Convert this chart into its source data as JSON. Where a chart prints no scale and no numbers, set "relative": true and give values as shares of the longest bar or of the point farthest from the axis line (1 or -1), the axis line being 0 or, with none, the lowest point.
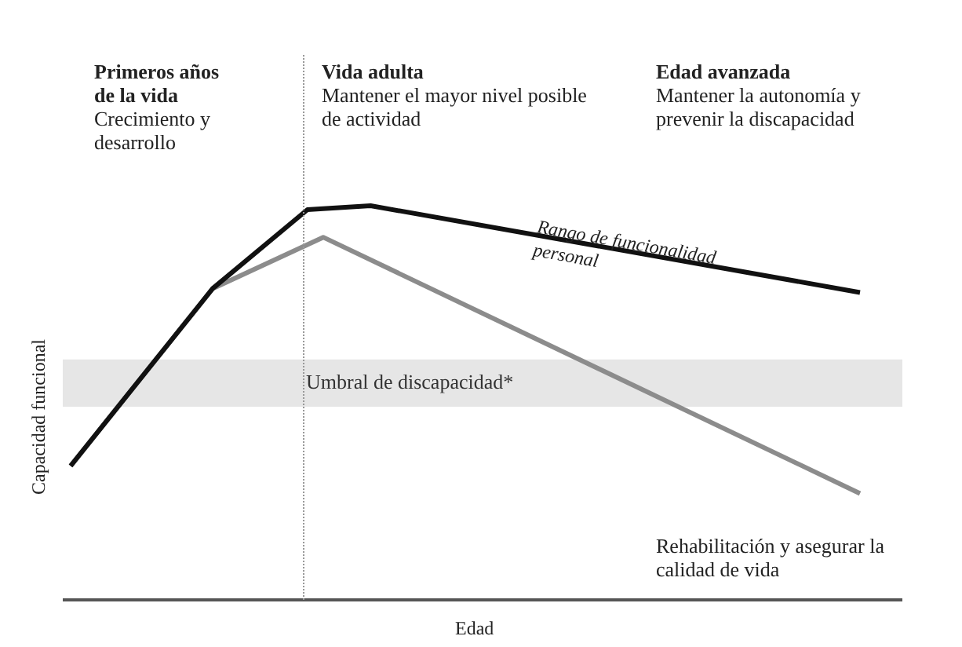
{
  "chart_data": {
    "type": "line",
    "relative": true,
    "xlabel": "Edad",
    "ylabel": "Capacidad funcional",
    "tick_labels": false,
    "grid": false,
    "legend": false,
    "marker": "none",
    "line_style": "solid",
    "categories": [
      null,
      null,
      null,
      null,
      null,
      null,
      null,
      null,
      null,
      null,
      null,
      null,
      null,
      null,
      null,
      null,
      null,
      null,
      null,
      null,
      null,
      null,
      null,
      null,
      null,
      null,
      null,
      null,
      null,
      null,
      null,
      null,
      null,
      null,
      null,
      null,
      null,
      null,
      null,
      null,
      null,
      null,
      null,
      null,
      null,
      null,
      null,
      null,
      null,
      null,
      null
    ],
    "series": [
      {
        "color": "#111111",
        "values": [
          0.34,
          null,
          null,
          null,
          null,
          null,
          null,
          null,
          null,
          0.79,
          null,
          null,
          null,
          null,
          null,
          0.99,
          null,
          null,
          null,
          1,
          null,
          null,
          null,
          null,
          null,
          null,
          null,
          null,
          null,
          null,
          null,
          null,
          null,
          null,
          null,
          null,
          null,
          null,
          null,
          null,
          null,
          null,
          null,
          null,
          null,
          null,
          null,
          null,
          null,
          null,
          0.78
        ]
      },
      {
        "color": "#8c8c8c",
        "values": [
          0.34,
          null,
          null,
          null,
          null,
          null,
          null,
          null,
          null,
          0.79,
          null,
          null,
          null,
          null,
          null,
          null,
          0.92,
          null,
          null,
          null,
          null,
          null,
          null,
          null,
          null,
          null,
          null,
          null,
          null,
          null,
          null,
          null,
          null,
          null,
          null,
          null,
          null,
          null,
          null,
          null,
          null,
          null,
          null,
          null,
          null,
          null,
          null,
          null,
          null,
          null,
          0.27
        ]
      }
    ],
    "bands": [
      {
        "axis": "y",
        "from": 0.49,
        "to": 0.61,
        "label": "Umbral de discapacidad*",
        "color": "#e6e6e6"
      }
    ],
    "annotations": [
      "Primeros años de la vida",
      "Crecimiento y desarrollo",
      "Vida adulta",
      "Mantener el mayor nivel posible de actividad",
      "Edad avanzada",
      "Mantener la autonomía y prevenir la discapacidad",
      "Rango de funcionalidad personal",
      "Rehabilitación y asegurar la calidad de vida"
    ]
  }
}
